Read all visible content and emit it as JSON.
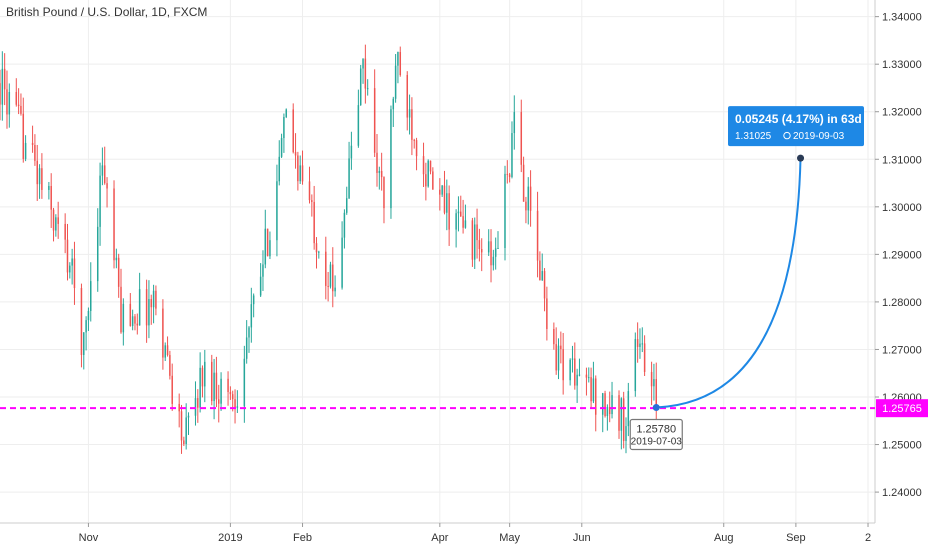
{
  "chart_data": {
    "type": "candlestick",
    "title": "British Pound / U.S. Dollar, 1D, FXCM",
    "y_ticks": [
      "1.24000",
      "1.25000",
      "1.26000",
      "1.27000",
      "1.28000",
      "1.29000",
      "1.30000",
      "1.31000",
      "1.32000",
      "1.33000",
      "1.34000"
    ],
    "ylim": [
      1.2335,
      1.3435
    ],
    "x_ticks": [
      "Nov",
      "2019",
      "Feb",
      "Apr",
      "May",
      "Jun",
      "Aug",
      "Sep",
      "2"
    ],
    "x_tick_dates": [
      "2018-11-01",
      "2019-01-01",
      "2019-02-01",
      "2019-04-01",
      "2019-05-01",
      "2019-06-01",
      "2019-08-01",
      "2019-09-01",
      "2019-10-02"
    ],
    "x_range": [
      "2018-09-24",
      "2019-10-05"
    ],
    "grid": true,
    "colors": {
      "up": "#26a69a",
      "down": "#ef5350",
      "price_line": "#ff00ff",
      "projection": "#1e88e5",
      "grid": "#eeeeee"
    },
    "key_points": [
      {
        "date": "2018-09-24",
        "value": 1.326
      },
      {
        "date": "2018-10-08",
        "value": 1.31
      },
      {
        "date": "2018-10-24",
        "value": 1.288
      },
      {
        "date": "2018-10-30",
        "value": 1.27
      },
      {
        "date": "2018-11-07",
        "value": 1.31
      },
      {
        "date": "2018-11-15",
        "value": 1.277
      },
      {
        "date": "2018-11-30",
        "value": 1.28
      },
      {
        "date": "2018-12-12",
        "value": 1.25
      },
      {
        "date": "2018-12-20",
        "value": 1.265
      },
      {
        "date": "2019-01-03",
        "value": 1.26
      },
      {
        "date": "2019-01-15",
        "value": 1.288
      },
      {
        "date": "2019-01-25",
        "value": 1.318
      },
      {
        "date": "2019-02-14",
        "value": 1.282
      },
      {
        "date": "2019-02-27",
        "value": 1.33
      },
      {
        "date": "2019-03-08",
        "value": 1.3
      },
      {
        "date": "2019-03-13",
        "value": 1.33
      },
      {
        "date": "2019-03-29",
        "value": 1.303
      },
      {
        "date": "2019-04-24",
        "value": 1.288
      },
      {
        "date": "2019-05-03",
        "value": 1.316
      },
      {
        "date": "2019-05-20",
        "value": 1.27
      },
      {
        "date": "2019-06-03",
        "value": 1.262
      },
      {
        "date": "2019-06-19",
        "value": 1.255
      },
      {
        "date": "2019-06-25",
        "value": 1.273
      },
      {
        "date": "2019-07-03",
        "value": 1.2576
      }
    ],
    "last_price": "1.25765",
    "measure": {
      "start": {
        "price_label": "1.25780",
        "date_label": "2019-07-03",
        "date": "2019-07-03",
        "value": 1.2578
      },
      "end": {
        "price_label": "1.31025",
        "date_label": "2019-09-03",
        "date": "2019-09-03",
        "value": 1.31025
      },
      "change_label": "0.05245 (4.17%) in 63d"
    }
  }
}
